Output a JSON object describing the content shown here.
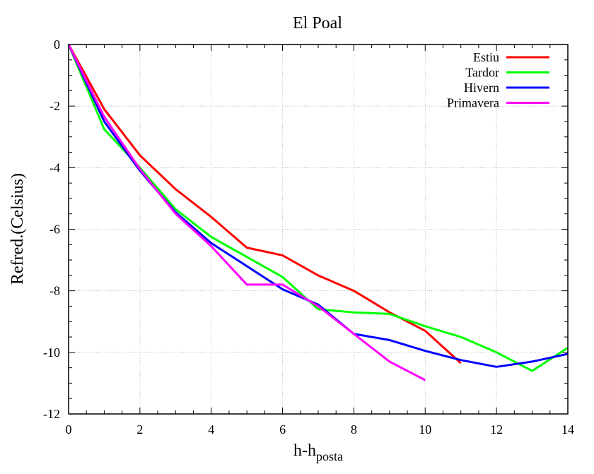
{
  "chart_data": {
    "type": "line",
    "title": "El Poal",
    "xlabel_main": "h-h",
    "xlabel_sub": "posta",
    "ylabel": "Refred.(Celsius)",
    "xlim": [
      0,
      14
    ],
    "ylim": [
      -12,
      0
    ],
    "xticks": [
      0,
      2,
      4,
      6,
      8,
      10,
      12,
      14
    ],
    "yticks": [
      0,
      -2,
      -4,
      -6,
      -8,
      -10,
      -12
    ],
    "xtick_labels": [
      "0",
      "2",
      "4",
      "6",
      "8",
      "10",
      "12",
      "14"
    ],
    "ytick_labels": [
      "0",
      "-2",
      "-4",
      "-6",
      "-8",
      "-10",
      "-12"
    ],
    "grid": true,
    "legend_position": "top-right",
    "series": [
      {
        "name": "Estiu",
        "color": "#ff0000",
        "x": [
          0,
          1,
          2,
          3,
          4,
          5,
          6,
          7,
          8,
          9,
          10,
          11
        ],
        "y": [
          0,
          -2.1,
          -3.6,
          -4.7,
          -5.6,
          -6.6,
          -6.85,
          -7.5,
          -8.0,
          -8.7,
          -9.3,
          -10.35
        ]
      },
      {
        "name": "Tardor",
        "color": "#00ff00",
        "x": [
          0,
          1,
          2,
          3,
          4,
          5,
          6,
          7,
          8,
          9,
          10,
          11,
          12,
          13,
          14
        ],
        "y": [
          0,
          -2.75,
          -4.0,
          -5.35,
          -6.25,
          -6.9,
          -7.55,
          -8.6,
          -8.7,
          -8.75,
          -9.15,
          -9.5,
          -10.0,
          -10.6,
          -9.85
        ]
      },
      {
        "name": "Hivern",
        "color": "#0000ff",
        "x": [
          0,
          1,
          2,
          3,
          4,
          5,
          6,
          7,
          8,
          9,
          10,
          11,
          12,
          13,
          14
        ],
        "y": [
          0,
          -2.5,
          -4.1,
          -5.45,
          -6.45,
          -7.2,
          -7.95,
          -8.45,
          -9.4,
          -9.6,
          -9.95,
          -10.25,
          -10.47,
          -10.3,
          -10.05
        ]
      },
      {
        "name": "Primavera",
        "color": "#ff00ff",
        "x": [
          0,
          1,
          2,
          3,
          4,
          5,
          6,
          7,
          8,
          9,
          10
        ],
        "y": [
          0,
          -2.35,
          -4.05,
          -5.5,
          -6.55,
          -7.8,
          -7.8,
          -8.5,
          -9.4,
          -10.3,
          -10.9
        ]
      }
    ]
  }
}
